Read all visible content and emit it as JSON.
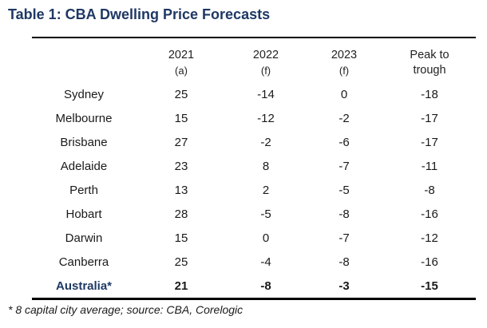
{
  "title": "Table 1: CBA Dwelling Price Forecasts",
  "table": {
    "headers": [
      {
        "line1": "",
        "line2": ""
      },
      {
        "line1": "2021",
        "line2": "(a)"
      },
      {
        "line1": "2022",
        "line2": "(f)"
      },
      {
        "line1": "2023",
        "line2": "(f)"
      },
      {
        "line1": "Peak to",
        "line2": "trough"
      }
    ],
    "rows": [
      [
        "Sydney",
        "25",
        "-14",
        "0",
        "-18"
      ],
      [
        "Melbourne",
        "15",
        "-12",
        "-2",
        "-17"
      ],
      [
        "Brisbane",
        "27",
        "-2",
        "-6",
        "-17"
      ],
      [
        "Adelaide",
        "23",
        "8",
        "-7",
        "-11"
      ],
      [
        "Perth",
        "13",
        "2",
        "-5",
        "-8"
      ],
      [
        "Hobart",
        "28",
        "-5",
        "-8",
        "-16"
      ],
      [
        "Darwin",
        "15",
        "0",
        "-7",
        "-12"
      ],
      [
        "Canberra",
        "25",
        "-4",
        "-8",
        "-16"
      ]
    ],
    "total": [
      "Australia*",
      "21",
      "-8",
      "-3",
      "-15"
    ]
  },
  "footnote": "* 8 capital city average; source: CBA, Corelogic"
}
